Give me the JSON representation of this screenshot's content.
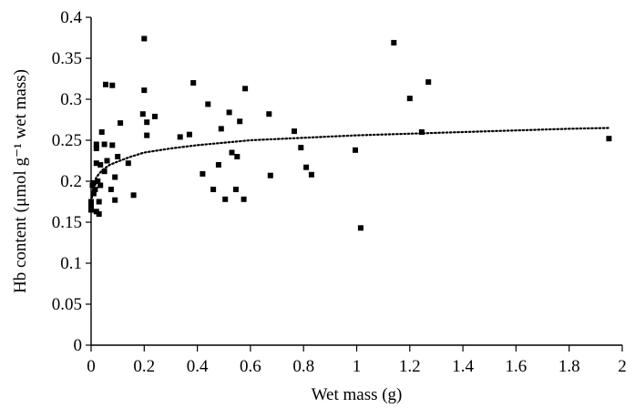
{
  "chart_data": {
    "type": "scatter",
    "xlabel": "Wet mass (g)",
    "ylabel": "Hb content (μmol g⁻¹ wet mass)",
    "xlim": [
      0,
      2
    ],
    "ylim": [
      0,
      0.4
    ],
    "x_ticks": [
      0,
      0.2,
      0.4,
      0.6,
      0.8,
      1,
      1.2,
      1.4,
      1.6,
      1.8,
      2
    ],
    "y_ticks": [
      0,
      0.05,
      0.1,
      0.15,
      0.2,
      0.25,
      0.3,
      0.35,
      0.4
    ],
    "x_tick_labels": [
      "0",
      "0.2",
      "0.4",
      "0.6",
      "0.8",
      "1",
      "1.2",
      "1.4",
      "1.6",
      "1.8",
      "2"
    ],
    "y_tick_labels": [
      "0",
      "0.05",
      "0.1",
      "0.15",
      "0.2",
      "0.25",
      "0.3",
      "0.35",
      "0.4"
    ],
    "grid": false,
    "legend": "none",
    "series": [
      {
        "marker": "square",
        "color": "#000000",
        "points": [
          [
            0.0,
            0.175
          ],
          [
            0.0,
            0.17
          ],
          [
            0.0,
            0.165
          ],
          [
            0.005,
            0.195
          ],
          [
            0.01,
            0.185
          ],
          [
            0.01,
            0.198
          ],
          [
            0.015,
            0.19
          ],
          [
            0.02,
            0.163
          ],
          [
            0.02,
            0.24
          ],
          [
            0.02,
            0.245
          ],
          [
            0.02,
            0.222
          ],
          [
            0.025,
            0.2
          ],
          [
            0.03,
            0.16
          ],
          [
            0.03,
            0.175
          ],
          [
            0.035,
            0.22
          ],
          [
            0.035,
            0.195
          ],
          [
            0.04,
            0.26
          ],
          [
            0.05,
            0.212
          ],
          [
            0.05,
            0.245
          ],
          [
            0.055,
            0.318
          ],
          [
            0.06,
            0.225
          ],
          [
            0.075,
            0.19
          ],
          [
            0.08,
            0.317
          ],
          [
            0.08,
            0.244
          ],
          [
            0.09,
            0.205
          ],
          [
            0.09,
            0.177
          ],
          [
            0.1,
            0.23
          ],
          [
            0.11,
            0.271
          ],
          [
            0.14,
            0.222
          ],
          [
            0.16,
            0.183
          ],
          [
            0.195,
            0.282
          ],
          [
            0.2,
            0.374
          ],
          [
            0.2,
            0.311
          ],
          [
            0.21,
            0.256
          ],
          [
            0.21,
            0.272
          ],
          [
            0.24,
            0.279
          ],
          [
            0.335,
            0.254
          ],
          [
            0.37,
            0.257
          ],
          [
            0.385,
            0.32
          ],
          [
            0.42,
            0.209
          ],
          [
            0.44,
            0.294
          ],
          [
            0.46,
            0.19
          ],
          [
            0.48,
            0.22
          ],
          [
            0.49,
            0.264
          ],
          [
            0.505,
            0.178
          ],
          [
            0.52,
            0.284
          ],
          [
            0.53,
            0.235
          ],
          [
            0.545,
            0.19
          ],
          [
            0.55,
            0.23
          ],
          [
            0.56,
            0.273
          ],
          [
            0.575,
            0.178
          ],
          [
            0.58,
            0.313
          ],
          [
            0.67,
            0.282
          ],
          [
            0.675,
            0.207
          ],
          [
            0.765,
            0.261
          ],
          [
            0.79,
            0.241
          ],
          [
            0.81,
            0.217
          ],
          [
            0.83,
            0.208
          ],
          [
            0.995,
            0.238
          ],
          [
            1.015,
            0.143
          ],
          [
            1.14,
            0.369
          ],
          [
            1.2,
            0.301
          ],
          [
            1.245,
            0.26
          ],
          [
            1.27,
            0.321
          ],
          [
            1.95,
            0.252
          ]
        ]
      }
    ],
    "trendline": {
      "style": "dotted",
      "color": "#000000",
      "curve": "logarithmic",
      "points": [
        [
          0.003,
          0.18
        ],
        [
          0.01,
          0.196
        ],
        [
          0.02,
          0.205
        ],
        [
          0.04,
          0.213
        ],
        [
          0.07,
          0.22
        ],
        [
          0.1,
          0.224
        ],
        [
          0.15,
          0.23
        ],
        [
          0.2,
          0.235
        ],
        [
          0.3,
          0.24
        ],
        [
          0.4,
          0.244
        ],
        [
          0.5,
          0.247
        ],
        [
          0.6,
          0.25
        ],
        [
          0.8,
          0.253
        ],
        [
          1.0,
          0.256
        ],
        [
          1.2,
          0.258
        ],
        [
          1.4,
          0.26
        ],
        [
          1.6,
          0.262
        ],
        [
          1.8,
          0.264
        ],
        [
          1.95,
          0.265
        ]
      ]
    }
  }
}
